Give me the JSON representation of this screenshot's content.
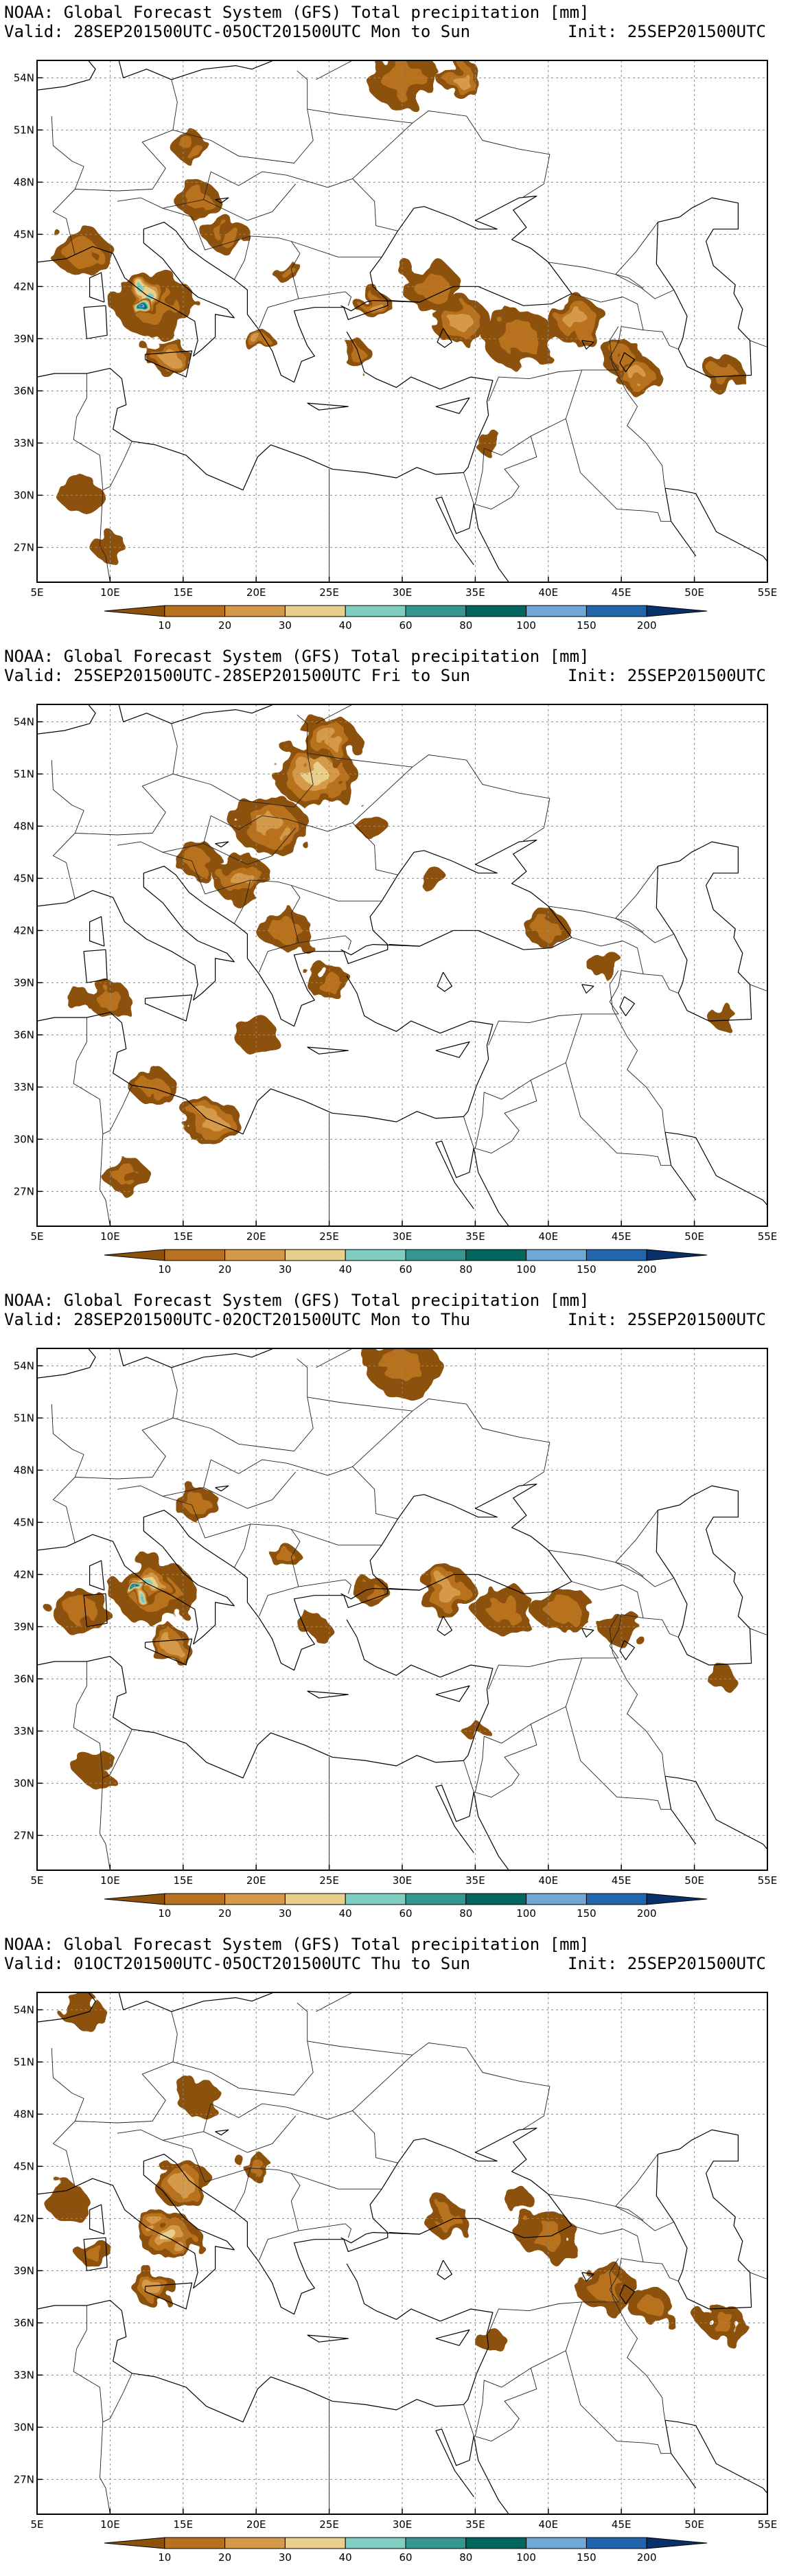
{
  "colorbar": {
    "levels": [
      "10",
      "20",
      "30",
      "40",
      "60",
      "80",
      "100",
      "150",
      "200"
    ],
    "colors": [
      "#8c510a",
      "#b8711f",
      "#d49a4a",
      "#e8d08c",
      "#80cdc1",
      "#35978f",
      "#01665e",
      "#6fa8d6",
      "#2166ac",
      "#08306b"
    ]
  },
  "axes": {
    "lon_labels": [
      "5E",
      "10E",
      "15E",
      "20E",
      "25E",
      "30E",
      "35E",
      "40E",
      "45E",
      "50E",
      "55E"
    ],
    "lat_labels": [
      "54N",
      "51N",
      "48N",
      "45N",
      "42N",
      "39N",
      "36N",
      "33N",
      "30N",
      "27N"
    ],
    "lon_range": [
      5,
      55
    ],
    "lat_range": [
      25,
      55
    ]
  },
  "panels": [
    {
      "title": "NOAA: Global Forecast System (GFS) Total precipitation [mm]",
      "valid": "Valid: 28SEP201500UTC-05OCT201500UTC Mon to Sun",
      "init": "Init: 25SEP201500UTC",
      "rain": [
        [
          13,
          41,
          2.8,
          1
        ],
        [
          12.5,
          41.5,
          1.5,
          4
        ],
        [
          12,
          41,
          0.8,
          8
        ],
        [
          14,
          38,
          1.5,
          2
        ],
        [
          8,
          44,
          2,
          1
        ],
        [
          16,
          47,
          1.5,
          1
        ],
        [
          15.5,
          50,
          1.2,
          1
        ],
        [
          18,
          45,
          1.5,
          1
        ],
        [
          22,
          43,
          1,
          1
        ],
        [
          28,
          41,
          1.2,
          2
        ],
        [
          32,
          42,
          2,
          1
        ],
        [
          34,
          40,
          2,
          2
        ],
        [
          38,
          39,
          2.5,
          1
        ],
        [
          42,
          40,
          2,
          2
        ],
        [
          45,
          38,
          1.5,
          1
        ],
        [
          46,
          37,
          1.5,
          2
        ],
        [
          30,
          54,
          2.5,
          1
        ],
        [
          34,
          54,
          1.5,
          2
        ],
        [
          8,
          30,
          1.5,
          0
        ],
        [
          10,
          27,
          1.2,
          0
        ],
        [
          27,
          38,
          1,
          1
        ],
        [
          52,
          37,
          1.5,
          1
        ],
        [
          20,
          39,
          1,
          2
        ],
        [
          36,
          33,
          1,
          0
        ]
      ]
    },
    {
      "title": "NOAA: Global Forecast System (GFS) Total precipitation [mm]",
      "valid": "Valid: 25SEP201500UTC-28SEP201500UTC Fri to Sun",
      "init": "Init: 25SEP201500UTC",
      "rain": [
        [
          24,
          51,
          2.8,
          3
        ],
        [
          21,
          48,
          2.5,
          2
        ],
        [
          19,
          45,
          2,
          2
        ],
        [
          25,
          53,
          2,
          2
        ],
        [
          16,
          46,
          1.5,
          1
        ],
        [
          22,
          42,
          1.8,
          1
        ],
        [
          25,
          39,
          1.5,
          1
        ],
        [
          10,
          38,
          1.5,
          1
        ],
        [
          17,
          31,
          2,
          2
        ],
        [
          13,
          33,
          1.5,
          1
        ],
        [
          11,
          28,
          1.5,
          1
        ],
        [
          8,
          38,
          1,
          0
        ],
        [
          40,
          42,
          1.5,
          1
        ],
        [
          44,
          40,
          1.2,
          0
        ],
        [
          20,
          36,
          1.5,
          0
        ],
        [
          28,
          48,
          1,
          0
        ],
        [
          32,
          45,
          1,
          0
        ],
        [
          52,
          37,
          1,
          0
        ]
      ]
    },
    {
      "title": "NOAA: Global Forecast System (GFS) Total precipitation [mm]",
      "valid": "Valid: 28SEP201500UTC-02OCT201500UTC Mon to Thu",
      "init": "Init: 25SEP201500UTC",
      "rain": [
        [
          13,
          41,
          2.8,
          1
        ],
        [
          12.5,
          41.5,
          1.5,
          4
        ],
        [
          12,
          41,
          0.8,
          8
        ],
        [
          14,
          38,
          1.5,
          2
        ],
        [
          8,
          40,
          2,
          1
        ],
        [
          16,
          46,
          1.5,
          1
        ],
        [
          22,
          43,
          1,
          1
        ],
        [
          28,
          41,
          1.2,
          1
        ],
        [
          33,
          41,
          2,
          2
        ],
        [
          37,
          40,
          2,
          1
        ],
        [
          41,
          40,
          2,
          1
        ],
        [
          45,
          39,
          1.5,
          0
        ],
        [
          30,
          54,
          2.5,
          1
        ],
        [
          9,
          31,
          1.5,
          0
        ],
        [
          24,
          39,
          1,
          0
        ],
        [
          52,
          36,
          1,
          0
        ],
        [
          35,
          33,
          0.8,
          0
        ]
      ]
    },
    {
      "title": "NOAA: Global Forecast System (GFS) Total precipitation [mm]",
      "valid": "Valid: 01OCT201500UTC-05OCT201500UTC Thu to Sun",
      "init": "Init: 25SEP201500UTC",
      "rain": [
        [
          15,
          44,
          2,
          2
        ],
        [
          14,
          41,
          2,
          3
        ],
        [
          13,
          38,
          1.5,
          2
        ],
        [
          7,
          43,
          1.5,
          0
        ],
        [
          9,
          40,
          1.2,
          1
        ],
        [
          16,
          49,
          1.5,
          0
        ],
        [
          20,
          45,
          1,
          1
        ],
        [
          33,
          42,
          1.5,
          1
        ],
        [
          40,
          41,
          2,
          1
        ],
        [
          44,
          38,
          2,
          1
        ],
        [
          47,
          37,
          1.5,
          1
        ],
        [
          52,
          36,
          1.5,
          1
        ],
        [
          8,
          54,
          1.5,
          0
        ],
        [
          36,
          35,
          1,
          0
        ],
        [
          38,
          43,
          1,
          0
        ]
      ]
    }
  ]
}
